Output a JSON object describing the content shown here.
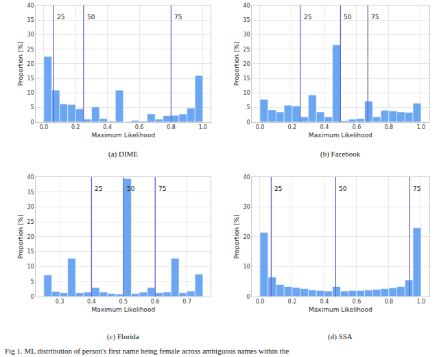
{
  "chart_data": [
    {
      "type": "histogram",
      "title": "(a) DIME",
      "x_label": "Maximum Likelihood",
      "y_label": "Proportion [%]",
      "bins": [
        0,
        0.05,
        0.1,
        0.15,
        0.2,
        0.25,
        0.3,
        0.35,
        0.4,
        0.45,
        0.5,
        0.55,
        0.6,
        0.65,
        0.7,
        0.75,
        0.8,
        0.85,
        0.9,
        0.95,
        1.0
      ],
      "values": [
        22.5,
        11,
        6.2,
        6,
        4.5,
        1,
        5.2,
        1.2,
        0.4,
        11,
        0.2,
        0.6,
        0.4,
        2.8,
        1,
        2.2,
        2.3,
        2.8,
        4.8,
        16
      ],
      "percentile_lines": [
        {
          "value": 0.06,
          "label": "25"
        },
        {
          "value": 0.25,
          "label": "50"
        },
        {
          "value": 0.8,
          "label": "75"
        }
      ],
      "xlim": [
        -0.05,
        1.05
      ],
      "ylim": [
        0,
        40
      ],
      "xticks": [
        {
          "value": 0,
          "label": "0.0"
        },
        {
          "value": 0.2,
          "label": "0.2"
        },
        {
          "value": 0.4,
          "label": "0.4"
        },
        {
          "value": 0.6,
          "label": "0.6"
        },
        {
          "value": 0.8,
          "label": "0.8"
        },
        {
          "value": 1,
          "label": "1.0"
        }
      ],
      "yticks": [
        0,
        5,
        10,
        15,
        20,
        25,
        30,
        35,
        40
      ],
      "color": "#6aa6f2",
      "grid": true
    },
    {
      "type": "histogram",
      "title": "(b) Facebook",
      "x_label": "Maximum Likelihood",
      "y_label": "Proportion [%]",
      "bins": [
        0,
        0.05,
        0.1,
        0.15,
        0.2,
        0.25,
        0.3,
        0.35,
        0.4,
        0.45,
        0.5,
        0.55,
        0.6,
        0.65,
        0.7,
        0.75,
        0.8,
        0.85,
        0.9,
        0.95,
        1.0
      ],
      "values": [
        7.8,
        4.2,
        3.5,
        5.8,
        5.5,
        1.8,
        9.3,
        3.5,
        1.8,
        26.5,
        0.5,
        1,
        1.2,
        7.2,
        1.8,
        4,
        3.8,
        3.5,
        3.3,
        6.5
      ],
      "percentile_lines": [
        {
          "value": 0.25,
          "label": "25"
        },
        {
          "value": 0.5,
          "label": "50"
        },
        {
          "value": 0.67,
          "label": "75"
        }
      ],
      "xlim": [
        -0.05,
        1.05
      ],
      "ylim": [
        0,
        40
      ],
      "xticks": [
        {
          "value": 0,
          "label": "0.0"
        },
        {
          "value": 0.2,
          "label": "0.2"
        },
        {
          "value": 0.4,
          "label": "0.4"
        },
        {
          "value": 0.6,
          "label": "0.6"
        },
        {
          "value": 0.8,
          "label": "0.8"
        },
        {
          "value": 1,
          "label": "1.0"
        }
      ],
      "yticks": [
        0,
        5,
        10,
        15,
        20,
        25,
        30,
        35,
        40
      ],
      "color": "#6aa6f2",
      "grid": true
    },
    {
      "type": "histogram",
      "title": "(c) Florida",
      "x_label": "Maximum Likelihood",
      "y_label": "Proportion [%]",
      "bins": [
        0.25,
        0.275,
        0.3,
        0.325,
        0.35,
        0.375,
        0.4,
        0.425,
        0.45,
        0.475,
        0.5,
        0.525,
        0.55,
        0.575,
        0.6,
        0.625,
        0.65,
        0.675,
        0.7,
        0.725,
        0.75
      ],
      "values": [
        7.2,
        1.7,
        1.2,
        12.8,
        1.2,
        1.5,
        3,
        1.5,
        1,
        0.8,
        39.5,
        1,
        1.5,
        3,
        1.2,
        1.5,
        12.8,
        1.2,
        1.8,
        7.5
      ],
      "percentile_lines": [
        {
          "value": 0.4,
          "label": "25"
        },
        {
          "value": 0.5,
          "label": "50"
        },
        {
          "value": 0.6,
          "label": "75"
        }
      ],
      "xlim": [
        0.225,
        0.775
      ],
      "ylim": [
        0,
        40
      ],
      "xticks": [
        0.3,
        0.4,
        0.5,
        0.6,
        0.7
      ],
      "yticks": [
        0,
        5,
        10,
        15,
        20,
        25,
        30,
        35,
        40
      ],
      "color": "#6aa6f2",
      "grid": true
    },
    {
      "type": "histogram",
      "title": "(d) SSA",
      "x_label": "Maximum Likelihood",
      "y_label": "Proportion [%]",
      "bins": [
        0,
        0.05,
        0.1,
        0.15,
        0.2,
        0.25,
        0.3,
        0.35,
        0.4,
        0.45,
        0.5,
        0.55,
        0.6,
        0.65,
        0.7,
        0.75,
        0.8,
        0.85,
        0.9,
        0.95,
        1.0
      ],
      "values": [
        21.5,
        6.5,
        4,
        3.3,
        3,
        2.6,
        2.2,
        2,
        1.8,
        3.3,
        1.8,
        2,
        2,
        2.2,
        2.4,
        2.6,
        2.9,
        3.3,
        5.5,
        23
      ],
      "percentile_lines": [
        {
          "value": 0.07,
          "label": "25"
        },
        {
          "value": 0.47,
          "label": "50"
        },
        {
          "value": 0.93,
          "label": "75"
        }
      ],
      "xlim": [
        -0.05,
        1.05
      ],
      "ylim": [
        0,
        40
      ],
      "xticks": [
        {
          "value": 0,
          "label": "0.0"
        },
        {
          "value": 0.2,
          "label": "0.2"
        },
        {
          "value": 0.4,
          "label": "0.4"
        },
        {
          "value": 0.6,
          "label": "0.6"
        },
        {
          "value": 0.8,
          "label": "0.8"
        },
        {
          "value": 1,
          "label": "1.0"
        }
      ],
      "yticks": [
        0,
        10,
        20,
        30,
        40
      ],
      "color": "#6aa6f2",
      "grid": true
    }
  ],
  "caption": "Fig 1. ML distribution of person's first name being female across ambiguous names within the"
}
